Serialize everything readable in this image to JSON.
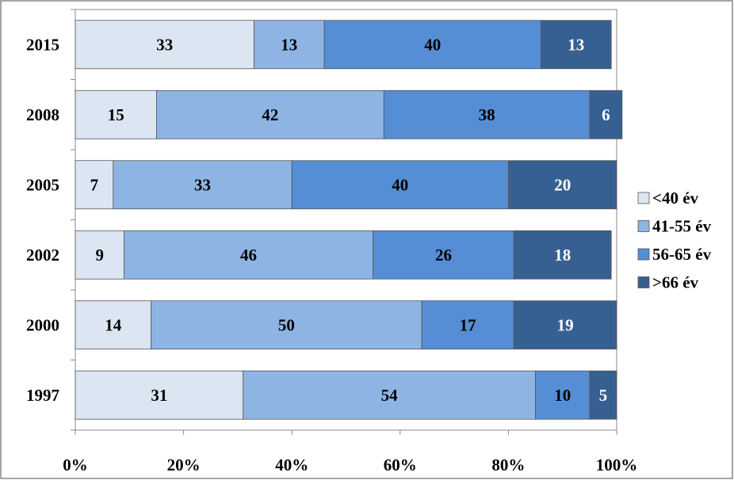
{
  "chart_data": {
    "type": "bar",
    "orientation": "horizontal",
    "stacked": true,
    "categories": [
      "2015",
      "2008",
      "2005",
      "2002",
      "2000",
      "1997"
    ],
    "series": [
      {
        "name": "<40 év",
        "color": "#dce6f2",
        "label_color": "#000000",
        "values": [
          33,
          15,
          7,
          9,
          14,
          31
        ]
      },
      {
        "name": "41-55 év",
        "color": "#8eb4e3",
        "label_color": "#000000",
        "values": [
          13,
          42,
          33,
          46,
          50,
          54
        ]
      },
      {
        "name": "56-65 év",
        "color": "#558ed5",
        "label_color": "#000000",
        "values": [
          40,
          38,
          40,
          26,
          17,
          10
        ]
      },
      {
        "name": ">66 év",
        "color": "#376092",
        "label_color": "#ffffff",
        "values": [
          13,
          6,
          20,
          18,
          19,
          5
        ]
      }
    ],
    "xlim": [
      0,
      100
    ],
    "xticks": [
      {
        "value": 0,
        "label": "0%"
      },
      {
        "value": 20,
        "label": "20%"
      },
      {
        "value": 40,
        "label": "40%"
      },
      {
        "value": 60,
        "label": "60%"
      },
      {
        "value": 80,
        "label": "80%"
      },
      {
        "value": 100,
        "label": "100%"
      }
    ],
    "legend": "right"
  }
}
